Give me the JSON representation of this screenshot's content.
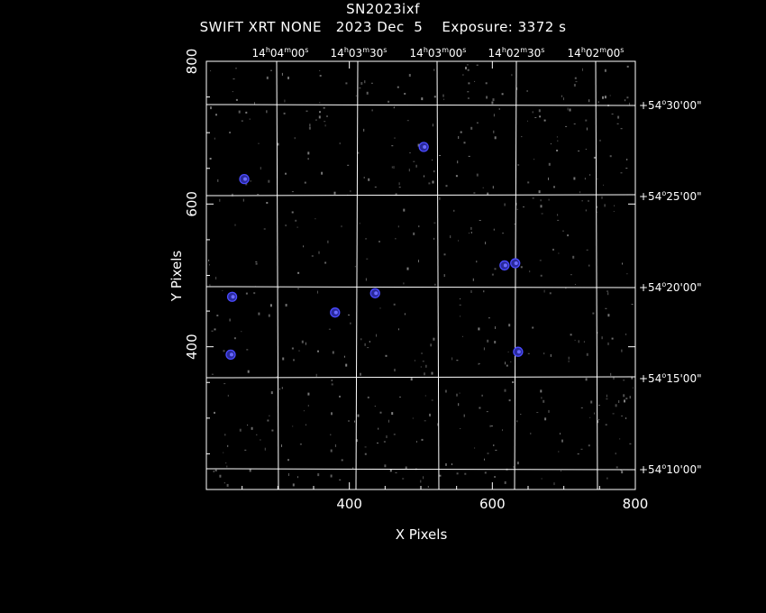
{
  "header": {
    "object_name": "SN2023ixf",
    "subtitle": "SWIFT XRT NONE   2023 Dec  5    Exposure: 3372 s"
  },
  "axes": {
    "xlabel": "X Pixels",
    "ylabel": "Y Pixels"
  },
  "chart_data": {
    "type": "scatter",
    "title": "SN2023ixf",
    "xlabel": "X Pixels",
    "ylabel": "Y Pixels",
    "xlim": [
      200,
      800
    ],
    "ylim": [
      200,
      800
    ],
    "x_ticks": [
      "400",
      "600",
      "800"
    ],
    "y_ticks": [
      "400",
      "600",
      "800"
    ],
    "ra_ticks": [
      {
        "h": "14",
        "m": "04",
        "s": "00"
      },
      {
        "h": "14",
        "m": "03",
        "s": "30"
      },
      {
        "h": "14",
        "m": "03",
        "s": "00"
      },
      {
        "h": "14",
        "m": "02",
        "s": "30"
      },
      {
        "h": "14",
        "m": "02",
        "s": "00"
      }
    ],
    "dec_ticks": [
      {
        "d": "+54",
        "m": "30",
        "s": "00"
      },
      {
        "d": "+54",
        "m": "25",
        "s": "00"
      },
      {
        "d": "+54",
        "m": "20",
        "s": "00"
      },
      {
        "d": "+54",
        "m": "15",
        "s": "00"
      },
      {
        "d": "+54",
        "m": "10",
        "s": "00"
      }
    ],
    "grid": true,
    "sources": [
      {
        "x": 504,
        "y": 680
      },
      {
        "x": 632,
        "y": 517
      },
      {
        "x": 436,
        "y": 475
      },
      {
        "x": 380,
        "y": 448
      },
      {
        "x": 236,
        "y": 470
      },
      {
        "x": 253,
        "y": 635
      },
      {
        "x": 636,
        "y": 393
      },
      {
        "x": 234,
        "y": 389
      },
      {
        "x": 617,
        "y": 514
      }
    ],
    "colors": {
      "background": "#000000",
      "grid": "#ffffff",
      "events": "#6a6a6a",
      "contours": "#4a4aff"
    }
  }
}
